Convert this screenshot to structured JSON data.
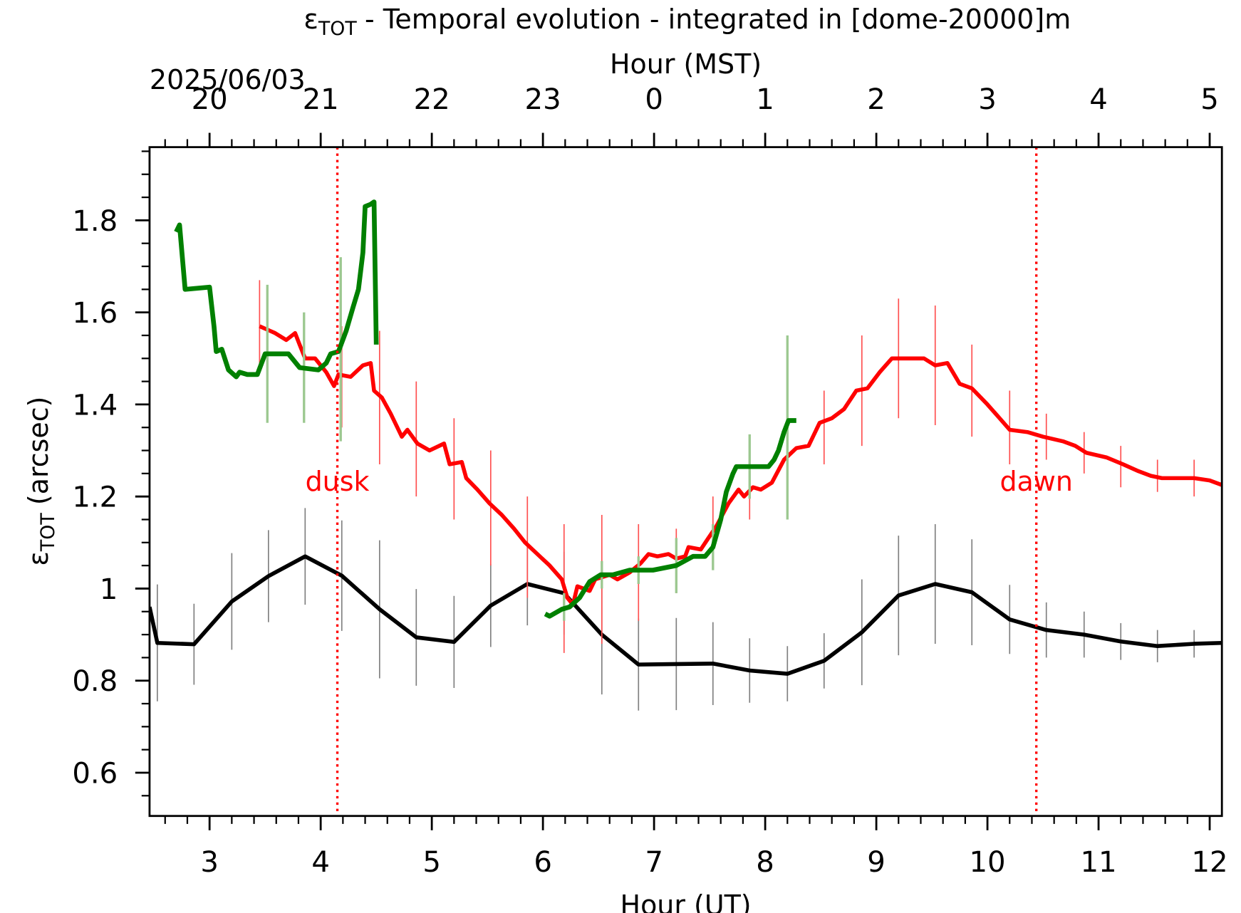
{
  "chart_data": {
    "type": "line",
    "title": {
      "symbol": "ε",
      "subscript": "TOT",
      "text": "- Temporal evolution - integrated in [dome-20000]m"
    },
    "ylabel": {
      "symbol": "ε",
      "subscript": "TOT",
      "text": "(arcsec)"
    },
    "xlabel": "Hour (UT)",
    "x2label": "Hour (MST)",
    "date": "2025/06/03",
    "xlim": [
      2.46,
      12.11
    ],
    "ylim": [
      0.506,
      1.959
    ],
    "xticks": [
      3,
      4,
      5,
      6,
      7,
      8,
      9,
      10,
      11,
      12
    ],
    "x2ticks": [
      {
        "value": 3,
        "label": "20"
      },
      {
        "value": 4,
        "label": "21"
      },
      {
        "value": 5,
        "label": "22"
      },
      {
        "value": 6,
        "label": "23"
      },
      {
        "value": 7,
        "label": "0"
      },
      {
        "value": 8,
        "label": "1"
      },
      {
        "value": 9,
        "label": "2"
      },
      {
        "value": 10,
        "label": "3"
      },
      {
        "value": 11,
        "label": "4"
      },
      {
        "value": 12,
        "label": "5"
      }
    ],
    "xminorticks": [
      2.6,
      2.8,
      3.2,
      3.4,
      3.6,
      3.8,
      4.2,
      4.4,
      4.6,
      4.8,
      5.2,
      5.4,
      5.6,
      5.8,
      6.2,
      6.4,
      6.6,
      6.8,
      7.2,
      7.4,
      7.6,
      7.8,
      8.2,
      8.4,
      8.6,
      8.8,
      9.2,
      9.4,
      9.6,
      9.8,
      10.2,
      10.4,
      10.6,
      10.8,
      11.2,
      11.4,
      11.6,
      11.8
    ],
    "yticks": [
      0.6,
      0.8,
      1.0,
      1.2,
      1.4,
      1.6,
      1.8
    ],
    "yminorticks": [
      0.55,
      0.65,
      0.7,
      0.75,
      0.85,
      0.9,
      0.95,
      1.05,
      1.1,
      1.15,
      1.25,
      1.3,
      1.35,
      1.45,
      1.5,
      1.55,
      1.65,
      1.7,
      1.75,
      1.85,
      1.9,
      1.95
    ],
    "vlines": [
      {
        "x": 4.15,
        "label": "dusk",
        "color": "#ff0000"
      },
      {
        "x": 10.44,
        "label": "dawn",
        "color": "#ff0000"
      }
    ],
    "series": [
      {
        "color": "#000000",
        "error_color": "#808080",
        "width": 5,
        "x": [
          2.46,
          2.53,
          2.86,
          3.2,
          3.53,
          3.86,
          4.19,
          4.53,
          4.86,
          5.2,
          5.53,
          5.86,
          6.19,
          6.53,
          6.86,
          7.2,
          7.53,
          7.86,
          8.2,
          8.53,
          8.87,
          9.2,
          9.53,
          9.86,
          10.2,
          10.53,
          10.87,
          11.2,
          11.53,
          11.86,
          12.11
        ],
        "values": [
          0.96,
          0.882,
          0.879,
          0.972,
          1.027,
          1.07,
          1.028,
          0.955,
          0.894,
          0.884,
          0.963,
          1.01,
          0.99,
          0.9,
          0.835,
          0.836,
          0.837,
          0.822,
          0.815,
          0.843,
          0.905,
          0.985,
          1.01,
          0.992,
          0.933,
          0.91,
          0.9,
          0.885,
          0.875,
          0.88,
          0.882
        ],
        "errorbars": {
          "x": [
            2.53,
            2.86,
            3.2,
            3.53,
            3.86,
            4.19,
            4.53,
            4.86,
            5.2,
            5.53,
            5.86,
            6.19,
            6.53,
            6.86,
            7.2,
            7.53,
            7.86,
            8.2,
            8.53,
            8.87,
            9.2,
            9.53,
            9.86,
            10.2,
            10.53,
            10.87,
            11.2,
            11.53,
            11.86
          ],
          "center": [
            0.882,
            0.879,
            0.972,
            1.027,
            1.07,
            1.028,
            0.955,
            0.894,
            0.884,
            0.963,
            1.01,
            0.99,
            0.9,
            0.835,
            0.836,
            0.837,
            0.822,
            0.815,
            0.843,
            0.905,
            0.985,
            1.01,
            0.992,
            0.933,
            0.91,
            0.9,
            0.885,
            0.875,
            0.88
          ],
          "error": [
            0.127,
            0.088,
            0.105,
            0.1,
            0.105,
            0.12,
            0.15,
            0.105,
            0.1,
            0.09,
            0.09,
            0.09,
            0.13,
            0.1,
            0.1,
            0.09,
            0.07,
            0.06,
            0.06,
            0.115,
            0.13,
            0.13,
            0.115,
            0.075,
            0.06,
            0.05,
            0.04,
            0.035,
            0.03
          ]
        }
      },
      {
        "color": "#ff0000",
        "error_color": "#ff5050",
        "width": 5,
        "x": [
          3.45,
          3.59,
          3.69,
          3.77,
          3.81,
          3.86,
          3.95,
          4.05,
          4.12,
          4.16,
          4.27,
          4.38,
          4.45,
          4.48,
          4.55,
          4.63,
          4.73,
          4.78,
          4.87,
          4.98,
          5.11,
          5.16,
          5.27,
          5.31,
          5.41,
          5.52,
          5.63,
          5.74,
          5.84,
          5.95,
          6.06,
          6.17,
          6.22,
          6.27,
          6.31,
          6.42,
          6.47,
          6.6,
          6.67,
          6.78,
          6.88,
          6.95,
          7.03,
          7.13,
          7.2,
          7.28,
          7.31,
          7.42,
          7.49,
          7.56,
          7.67,
          7.76,
          7.81,
          7.89,
          7.96,
          8.06,
          8.17,
          8.28,
          8.39,
          8.49,
          8.6,
          8.71,
          8.82,
          8.92,
          9.03,
          9.14,
          9.28,
          9.43,
          9.53,
          9.64,
          9.75,
          9.86,
          10.0,
          10.11,
          10.2,
          10.36,
          10.5,
          10.68,
          10.79,
          10.89,
          11.07,
          11.22,
          11.36,
          11.47,
          11.57,
          11.71,
          11.86,
          12.0,
          12.11
        ],
        "values": [
          1.57,
          1.555,
          1.54,
          1.555,
          1.53,
          1.5,
          1.5,
          1.47,
          1.44,
          1.465,
          1.46,
          1.485,
          1.49,
          1.43,
          1.415,
          1.38,
          1.33,
          1.345,
          1.315,
          1.3,
          1.315,
          1.27,
          1.275,
          1.24,
          1.215,
          1.185,
          1.16,
          1.13,
          1.1,
          1.075,
          1.05,
          1.02,
          0.98,
          0.965,
          1.005,
          0.995,
          1.02,
          1.03,
          1.02,
          1.035,
          1.055,
          1.075,
          1.07,
          1.075,
          1.065,
          1.07,
          1.09,
          1.085,
          1.11,
          1.135,
          1.185,
          1.215,
          1.2,
          1.22,
          1.215,
          1.23,
          1.28,
          1.305,
          1.31,
          1.36,
          1.37,
          1.39,
          1.43,
          1.435,
          1.47,
          1.5,
          1.5,
          1.5,
          1.485,
          1.49,
          1.445,
          1.435,
          1.4,
          1.37,
          1.345,
          1.34,
          1.33,
          1.32,
          1.31,
          1.295,
          1.285,
          1.27,
          1.255,
          1.245,
          1.24,
          1.24,
          1.24,
          1.235,
          1.225
        ],
        "errorbars": {
          "x": [
            3.45,
            4.19,
            4.53,
            4.86,
            5.2,
            5.53,
            5.86,
            6.19,
            6.53,
            6.86,
            7.2,
            7.53,
            7.86,
            8.2,
            8.53,
            8.87,
            9.2,
            9.53,
            9.86,
            10.2,
            10.53,
            10.87,
            11.2,
            11.53,
            11.86
          ],
          "center": [
            1.57,
            1.46,
            1.415,
            1.325,
            1.26,
            1.175,
            1.09,
            1.0,
            1.02,
            1.035,
            1.06,
            1.125,
            1.21,
            1.25,
            1.35,
            1.43,
            1.5,
            1.485,
            1.43,
            1.35,
            1.33,
            1.295,
            1.265,
            1.245,
            1.24
          ],
          "error": [
            0.1,
            0.11,
            0.145,
            0.125,
            0.11,
            0.125,
            0.11,
            0.14,
            0.14,
            0.105,
            0.07,
            0.075,
            0.06,
            0.05,
            0.08,
            0.12,
            0.13,
            0.13,
            0.1,
            0.08,
            0.05,
            0.045,
            0.045,
            0.035,
            0.04
          ]
        }
      },
      {
        "color": "#008000",
        "error_color": "#9cc890",
        "width": 6,
        "x": [
          2.7,
          2.73,
          2.78,
          3.0,
          3.04,
          3.06,
          3.11,
          3.17,
          3.24,
          3.27,
          3.34,
          3.43,
          3.5,
          3.71,
          3.81,
          3.98,
          4.05,
          4.09,
          4.16,
          4.23,
          4.29,
          4.34,
          4.38,
          4.4,
          4.45,
          4.48,
          4.5,
          null,
          6.02,
          6.06,
          6.17,
          6.24,
          6.33,
          6.42,
          6.52,
          6.63,
          6.78,
          6.99,
          7.2,
          7.35,
          7.46,
          7.53,
          7.6,
          7.65,
          7.71,
          7.74,
          7.81,
          8.03,
          8.08,
          8.12,
          8.17,
          8.21,
          8.28
        ],
        "values": [
          1.775,
          1.79,
          1.65,
          1.655,
          1.57,
          1.515,
          1.52,
          1.475,
          1.46,
          1.47,
          1.465,
          1.465,
          1.51,
          1.51,
          1.48,
          1.475,
          1.49,
          1.51,
          1.515,
          1.56,
          1.61,
          1.65,
          1.73,
          1.83,
          1.835,
          1.84,
          1.53,
          null,
          0.945,
          0.94,
          0.955,
          0.96,
          0.98,
          1.015,
          1.03,
          1.03,
          1.04,
          1.04,
          1.05,
          1.07,
          1.07,
          1.09,
          1.15,
          1.21,
          1.25,
          1.265,
          1.265,
          1.265,
          1.28,
          1.3,
          1.34,
          1.365,
          1.365
        ],
        "errorbars": {
          "x": [
            3.52,
            3.85,
            4.18,
            6.19,
            6.53,
            6.86,
            7.2,
            7.53,
            7.86,
            8.2
          ],
          "center": [
            1.51,
            1.48,
            1.52,
            0.96,
            1.03,
            1.04,
            1.05,
            1.09,
            1.265,
            1.35
          ],
          "error": [
            0.15,
            0.12,
            0.2,
            0.03,
            0.03,
            0.03,
            0.06,
            0.05,
            0.07,
            0.2
          ]
        }
      }
    ]
  }
}
